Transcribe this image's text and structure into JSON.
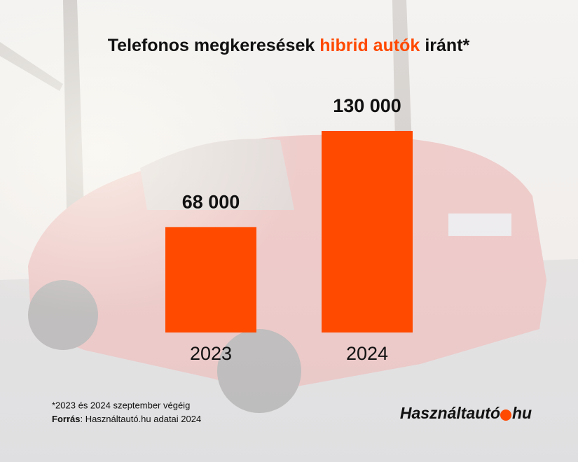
{
  "chart_data": {
    "type": "bar",
    "title": [
      {
        "text": "Telefonos megkeresések",
        "color": "#111111"
      },
      {
        "text": "hibrid autók",
        "color": "#ff4a00"
      },
      {
        "text": "iránt*",
        "color": "#111111"
      }
    ],
    "categories": [
      "2023",
      "2024"
    ],
    "values": [
      68000,
      130000
    ],
    "value_labels": [
      "68 000",
      "130 000"
    ],
    "color": "#ff4a00",
    "footnote": "*2023 és 2024 szeptember végéig",
    "source": {
      "label": "Forrás",
      "text": ": Használtautó.hu adatai 2024"
    },
    "logo": {
      "name": "Használtautó",
      "tld": "hu",
      "dot_color": "#ff4a00"
    }
  }
}
